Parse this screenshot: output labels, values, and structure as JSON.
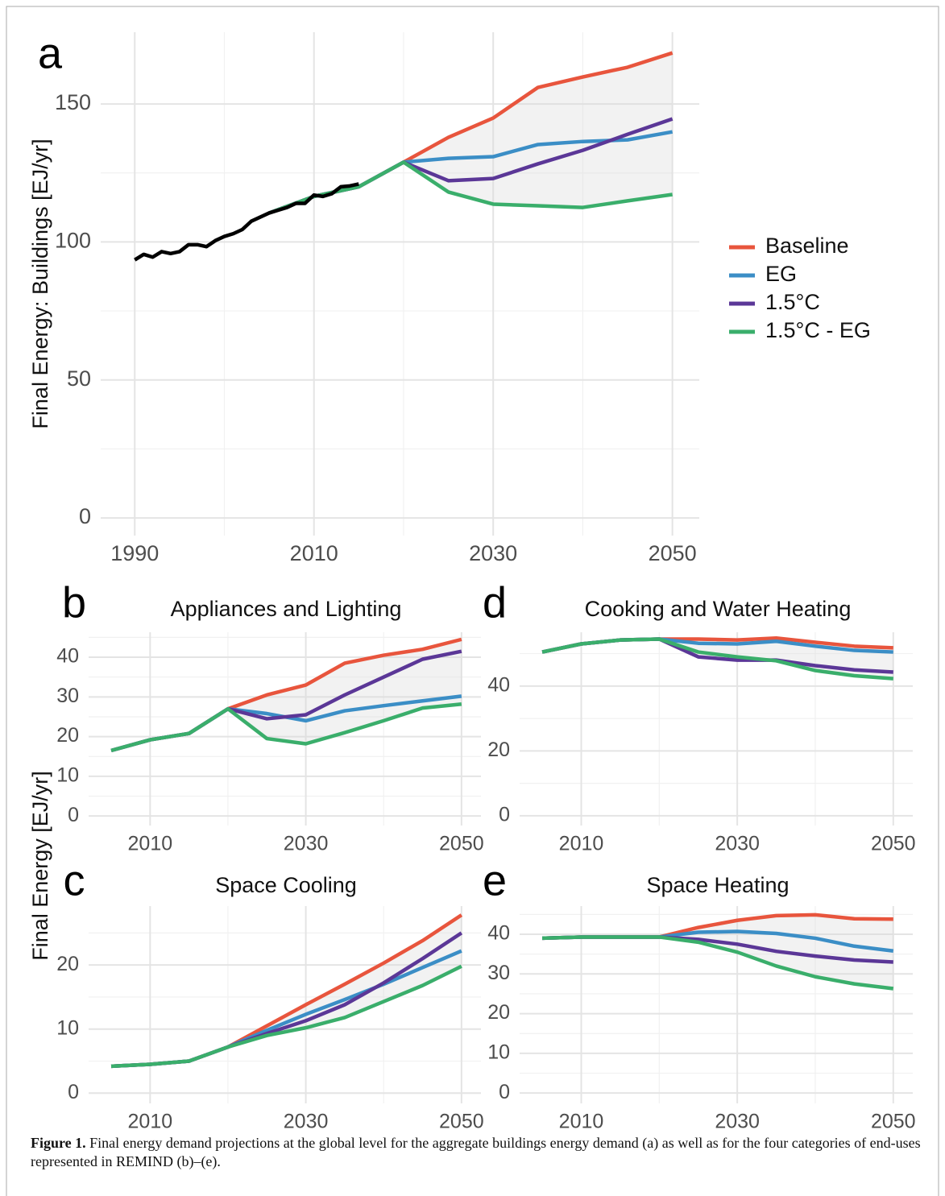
{
  "shared_ylabel": "Final Energy [EJ/yr]",
  "caption": {
    "label": "Figure 1.",
    "text": "Final energy demand projections at the global level for the aggregate buildings energy demand (a) as well as for the four categories of end-uses represented in REMIND (b)–(e)."
  },
  "chart_data": [
    {
      "type": "line",
      "panel_label": "a",
      "ylabel": "Final Energy: Buildings [EJ/yr]",
      "x": [
        2005,
        2010,
        2015,
        2020,
        2025,
        2030,
        2035,
        2040,
        2045,
        2050
      ],
      "xlim": [
        1986.2,
        2053
      ],
      "xticks": [
        1990,
        2010,
        2030,
        2050
      ],
      "xticks_minor": [
        2000,
        2020,
        2040
      ],
      "ylim": [
        -6.4,
        176
      ],
      "yticks": [
        0,
        50,
        100,
        150
      ],
      "yticks_minor": [
        25,
        75,
        125
      ],
      "grid": true,
      "legend": "right",
      "ribbon_color": "#d9d9d9",
      "history": {
        "color": "#000000",
        "x": [
          1990,
          1991,
          1992,
          1993,
          1994,
          1995,
          1996,
          1997,
          1998,
          1999,
          2000,
          2001,
          2002,
          2003,
          2004,
          2005,
          2006,
          2007,
          2008,
          2009,
          2010,
          2011,
          2012,
          2013,
          2014,
          2015
        ],
        "values": [
          93.5,
          95.5,
          94.5,
          96.5,
          95.8,
          96.5,
          99,
          99,
          98.3,
          100.5,
          102,
          103,
          104.5,
          107.5,
          109,
          110.5,
          111.5,
          112.5,
          114,
          114,
          117,
          116.5,
          117.5,
          120,
          120.3,
          121
        ]
      },
      "series": [
        {
          "name": "Baseline",
          "color": "#e8553d",
          "values": [
            110.5,
            116.5,
            120,
            128.9,
            137.9,
            144.9,
            156,
            159.8,
            163.3,
            168.5
          ]
        },
        {
          "name": "EG",
          "color": "#3b8ec6",
          "values": [
            110.5,
            116.5,
            120,
            128.9,
            130.3,
            130.9,
            135.3,
            136.4,
            137,
            139.9
          ]
        },
        {
          "name": "1.5°C",
          "color": "#5b3797",
          "values": [
            110.5,
            116.5,
            120,
            128.9,
            122.2,
            123,
            128.3,
            133.2,
            139,
            144.6
          ]
        },
        {
          "name": "1.5°C - EG",
          "color": "#3aae6b",
          "values": [
            110.5,
            116.5,
            120,
            128.9,
            118.1,
            113.7,
            113.1,
            112.5,
            114.9,
            117.2
          ]
        }
      ]
    },
    {
      "type": "line",
      "panel_label": "b",
      "title": "Appliances and Lighting",
      "x": [
        2005,
        2010,
        2015,
        2020,
        2025,
        2030,
        2035,
        2040,
        2045,
        2050
      ],
      "xlim": [
        2002.1,
        2052.5
      ],
      "xticks": [
        2010,
        2030,
        2050
      ],
      "xticks_minor": [
        2020,
        2040
      ],
      "ylim": [
        -2.4,
        46.3
      ],
      "yticks": [
        0,
        10,
        20,
        30,
        40
      ],
      "yticks_minor": [
        5,
        15,
        25,
        35,
        45
      ],
      "grid": true,
      "ribbon_color": "#d9d9d9",
      "series": [
        {
          "name": "Baseline",
          "color": "#e8553d",
          "values": [
            16.5,
            19.2,
            20.8,
            27,
            30.5,
            33,
            38.5,
            40.5,
            42,
            44.5
          ]
        },
        {
          "name": "EG",
          "color": "#3b8ec6",
          "values": [
            16.5,
            19.2,
            20.8,
            27,
            25.8,
            24,
            26.5,
            27.8,
            29,
            30.2
          ]
        },
        {
          "name": "1.5°C",
          "color": "#5b3797",
          "values": [
            16.5,
            19.2,
            20.8,
            27,
            24.5,
            25.5,
            30.5,
            35,
            39.5,
            41.5
          ]
        },
        {
          "name": "1.5°C - EG",
          "color": "#3aae6b",
          "values": [
            16.5,
            19.2,
            20.8,
            27,
            19.5,
            18.2,
            21,
            24,
            27.2,
            28.2
          ]
        }
      ]
    },
    {
      "type": "line",
      "panel_label": "c",
      "title": "Space Cooling",
      "x": [
        2005,
        2010,
        2015,
        2020,
        2025,
        2030,
        2035,
        2040,
        2045,
        2050
      ],
      "xlim": [
        2002.1,
        2052.5
      ],
      "xticks": [
        2010,
        2030,
        2050
      ],
      "xticks_minor": [
        2020,
        2040
      ],
      "ylim": [
        -1.6,
        29.2
      ],
      "yticks": [
        0,
        10,
        20
      ],
      "yticks_minor": [
        5,
        15,
        25
      ],
      "grid": true,
      "ribbon_color": "#d9d9d9",
      "series": [
        {
          "name": "Baseline",
          "color": "#e8553d",
          "values": [
            4.2,
            4.5,
            5,
            7.2,
            10.5,
            13.8,
            17,
            20.3,
            23.8,
            27.8
          ]
        },
        {
          "name": "EG",
          "color": "#3b8ec6",
          "values": [
            4.2,
            4.5,
            5,
            7.2,
            9.8,
            12.3,
            14.6,
            17,
            19.6,
            22.2
          ]
        },
        {
          "name": "1.5°C",
          "color": "#5b3797",
          "values": [
            4.2,
            4.5,
            5,
            7.2,
            9.3,
            11.3,
            13.8,
            17.2,
            21,
            25
          ]
        },
        {
          "name": "1.5°C - EG",
          "color": "#3aae6b",
          "values": [
            4.2,
            4.5,
            5,
            7.2,
            9,
            10.2,
            11.8,
            14.3,
            16.8,
            19.8
          ]
        }
      ]
    },
    {
      "type": "line",
      "panel_label": "d",
      "title": "Cooking and Water Heating",
      "x": [
        2005,
        2010,
        2015,
        2020,
        2025,
        2030,
        2035,
        2040,
        2045,
        2050
      ],
      "xlim": [
        2002.1,
        2052.5
      ],
      "xticks": [
        2010,
        2030,
        2050
      ],
      "xticks_minor": [
        2020,
        2040
      ],
      "ylim": [
        -3,
        56.6
      ],
      "yticks": [
        0,
        20,
        40
      ],
      "yticks_minor": [
        10,
        30,
        50
      ],
      "grid": true,
      "ribbon_color": "#d9d9d9",
      "series": [
        {
          "name": "Baseline",
          "color": "#e8553d",
          "values": [
            50.5,
            53,
            54.2,
            54.5,
            54.5,
            54.2,
            54.8,
            53.5,
            52.3,
            51.8
          ]
        },
        {
          "name": "EG",
          "color": "#3b8ec6",
          "values": [
            50.5,
            53,
            54.2,
            54.5,
            53.2,
            53,
            53.8,
            52.3,
            51,
            50.5
          ]
        },
        {
          "name": "1.5°C",
          "color": "#5b3797",
          "values": [
            50.5,
            53,
            54.2,
            54.5,
            49,
            48,
            48,
            46.3,
            45,
            44.3
          ]
        },
        {
          "name": "1.5°C - EG",
          "color": "#3aae6b",
          "values": [
            50.5,
            53,
            54.2,
            54.5,
            50.5,
            49,
            47.8,
            44.8,
            43.2,
            42.3
          ]
        }
      ]
    },
    {
      "type": "line",
      "panel_label": "e",
      "title": "Space Heating",
      "x": [
        2005,
        2010,
        2015,
        2020,
        2025,
        2030,
        2035,
        2040,
        2045,
        2050
      ],
      "xlim": [
        2002.1,
        2052.5
      ],
      "xticks": [
        2010,
        2030,
        2050
      ],
      "xticks_minor": [
        2020,
        2040
      ],
      "ylim": [
        -2.6,
        47.1
      ],
      "yticks": [
        0,
        10,
        20,
        30,
        40
      ],
      "yticks_minor": [
        5,
        15,
        25,
        35,
        45
      ],
      "grid": true,
      "ribbon_color": "#d9d9d9",
      "series": [
        {
          "name": "Baseline",
          "color": "#e8553d",
          "values": [
            39,
            39.3,
            39.3,
            39.3,
            41.7,
            43.5,
            44.7,
            44.9,
            43.9,
            43.8
          ]
        },
        {
          "name": "EG",
          "color": "#3b8ec6",
          "values": [
            39,
            39.3,
            39.3,
            39.3,
            40.5,
            40.7,
            40.2,
            39,
            37,
            35.8
          ]
        },
        {
          "name": "1.5°C",
          "color": "#5b3797",
          "values": [
            39,
            39.3,
            39.3,
            39.3,
            38.7,
            37.5,
            35.7,
            34.5,
            33.5,
            33
          ]
        },
        {
          "name": "1.5°C - EG",
          "color": "#3aae6b",
          "values": [
            39,
            39.3,
            39.3,
            39.3,
            38,
            35.5,
            32,
            29.3,
            27.5,
            26.3
          ]
        }
      ]
    }
  ]
}
